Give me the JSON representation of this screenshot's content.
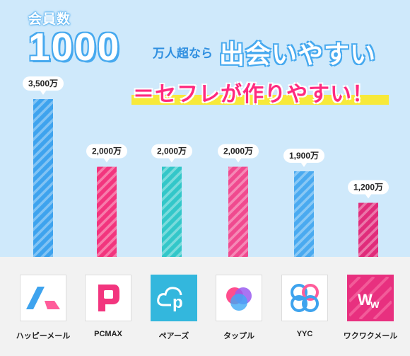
{
  "header": {
    "kicker": "会員数",
    "number": "1000",
    "unit": "万人超なら",
    "main": "出会いやすい",
    "tagline": "＝セフレが作りやすい！"
  },
  "chart_data": {
    "type": "bar",
    "categories": [
      "ハッピーメール",
      "PCMAX",
      "ペアーズ",
      "タップル",
      "YYC",
      "ワクワクメール"
    ],
    "values": [
      3500,
      2000,
      2000,
      2000,
      1900,
      1200
    ],
    "value_labels": [
      "3,500万",
      "2,000万",
      "2,000万",
      "2,000万",
      "1,900万",
      "1,200万"
    ],
    "ylim": [
      0,
      3500
    ],
    "colors": [
      "#3ea3ee",
      "#f2357e",
      "#33c7c9",
      "#f04a8f",
      "#4aaaf0",
      "#e02c7b"
    ],
    "grid": false
  },
  "apps": [
    {
      "name": "ハッピーメール",
      "icon": "happymail-logo-icon"
    },
    {
      "name": "PCMAX",
      "icon": "pcmax-logo-icon"
    },
    {
      "name": "ペアーズ",
      "icon": "pairs-logo-icon"
    },
    {
      "name": "タップル",
      "icon": "tapple-logo-icon"
    },
    {
      "name": "YYC",
      "icon": "yyc-logo-icon"
    },
    {
      "name": "ワクワクメール",
      "icon": "wakuwaku-logo-icon"
    }
  ]
}
